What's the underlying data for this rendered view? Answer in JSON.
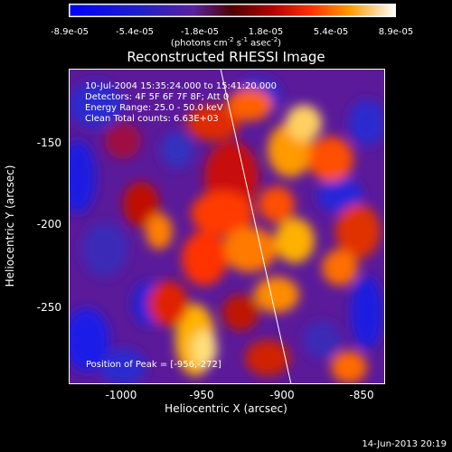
{
  "colorbar": {
    "ticks": [
      "-8.9e-05",
      "-5.4e-05",
      "-1.8e-05",
      "1.8e-05",
      "5.4e-05",
      "8.9e-05"
    ],
    "units": "(photons cm",
    "units_exp1": "-2",
    "units_mid": " s",
    "units_exp2": "-1",
    "units_end": " asec",
    "units_exp3": "-2",
    "units_close": ")"
  },
  "plot": {
    "title": "Reconstructed RHESSI Image",
    "xlabel": "Heliocentric X (arcsec)",
    "ylabel": "Heliocentric Y (arcsec)",
    "xticks": [
      "-1000",
      "-950",
      "-900",
      "-850"
    ],
    "yticks": [
      "-150",
      "-200",
      "-250"
    ],
    "info_lines": [
      "10-Jul-2004 15:35:24.000 to 15:41:20.000",
      "Detectors: 4F 5F 6F 7F 8F; Att 0",
      "Energy Range: 25.0 - 50.0 keV",
      "Clean    Total counts: 6.63E+03"
    ],
    "peak_label": "Position of Peak = [-956,-272]"
  },
  "footer": {
    "date": "14-Jun-2013 20:19"
  }
}
